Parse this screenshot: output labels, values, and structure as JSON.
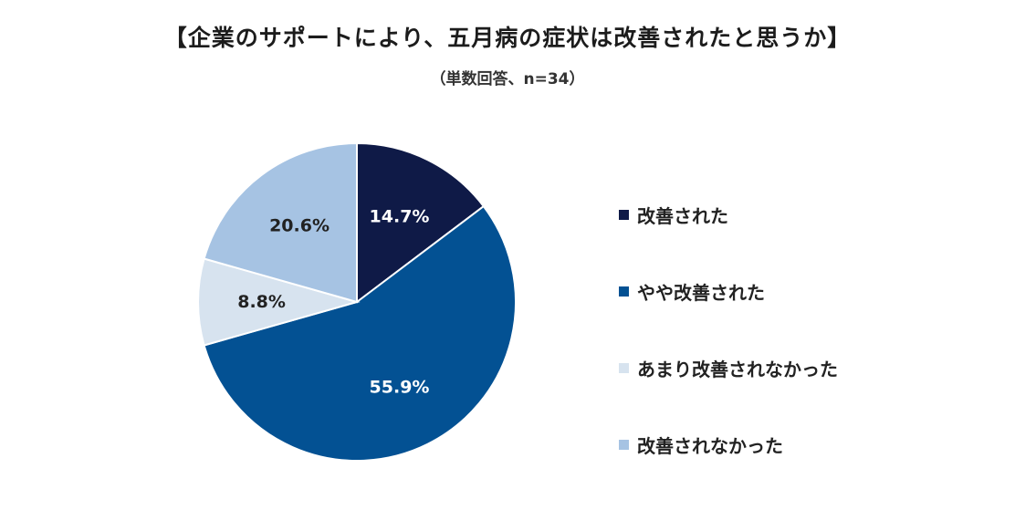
{
  "title": "【企業のサポートにより、五月病の症状は改善されたと思うか】",
  "subtitle": "（単数回答、n=34）",
  "chart_data": {
    "type": "pie",
    "categories": [
      "改善された",
      "やや改善された",
      "あまり改善されなかった",
      "改善されなかった"
    ],
    "values": [
      14.7,
      55.9,
      8.8,
      20.6
    ],
    "labels": [
      "14.7%",
      "55.9%",
      "8.8%",
      "20.6%"
    ],
    "colors": [
      "#0f1a47",
      "#035193",
      "#d7e3ef",
      "#a6c3e3"
    ],
    "label_colors": [
      "#ffffff",
      "#ffffff",
      "#222222",
      "#222222"
    ],
    "start": "12 o'clock",
    "direction": "clockwise",
    "legend_position": "right"
  }
}
